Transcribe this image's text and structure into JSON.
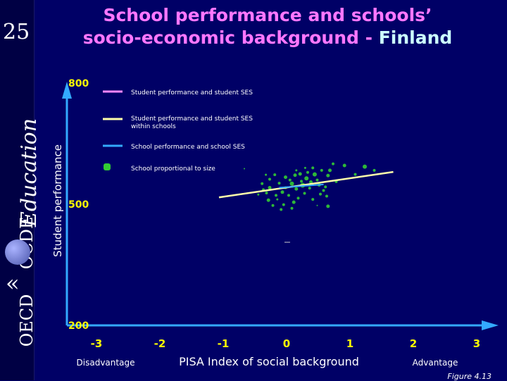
{
  "slide": {
    "number": "25",
    "title_main": "School performance and schools’ socio-economic background - ",
    "title_country": "Finland",
    "caption": "Figure 4.13"
  },
  "sidebar": {
    "logo_education": "Education",
    "logo_ocde": "OCDE",
    "logo_oecd": "OECD"
  },
  "colors": {
    "background": "#000066",
    "title": "#ff77ff",
    "title_highlight": "#ccffff",
    "axis": "#33aaff",
    "tick_labels": "#ffff00",
    "schools": "#33cc33",
    "student_line": "#ff88ff",
    "within_line": "#ffffaa",
    "school_line": "#33aaff"
  },
  "chart_data": {
    "type": "scatter",
    "xlabel": "PISA Index of social background",
    "ylabel": "Student performance",
    "xlim": [
      -3,
      3
    ],
    "ylim": [
      200,
      800
    ],
    "x_ticks": [
      "-3",
      "-2",
      "-1",
      "0",
      "1",
      "2",
      "3"
    ],
    "y_ticks": [
      "800",
      "500",
      "200"
    ],
    "x_annotations": {
      "left": "Disadvantage",
      "right": "Advantage"
    },
    "legend": [
      {
        "label": "Student performance and student SES",
        "kind": "line",
        "color": "#ff88ff"
      },
      {
        "label": "Student performance and student SES within schools",
        "kind": "line",
        "color": "#ffffaa"
      },
      {
        "label": "School performance and school SES",
        "kind": "line",
        "color": "#33aaff"
      },
      {
        "label": "School proportional to size",
        "kind": "marker",
        "color": "#33cc33"
      }
    ],
    "lines": [
      {
        "series": "Student performance and student SES within schools",
        "x": [
          -1.1,
          1.65
        ],
        "y": [
          517,
          580
        ]
      },
      {
        "series": "School performance and school SES",
        "x": [
          -0.15,
          0.55
        ],
        "y": [
          541,
          549
        ]
      }
    ],
    "schools": [
      {
        "x": 0.22,
        "y": 547,
        "r": 3.5
      },
      {
        "x": 0.05,
        "y": 551,
        "r": 3.0
      },
      {
        "x": 0.12,
        "y": 538,
        "r": 2.5
      },
      {
        "x": 0.28,
        "y": 564,
        "r": 3.0
      },
      {
        "x": 0.35,
        "y": 555,
        "r": 2.5
      },
      {
        "x": 0.18,
        "y": 575,
        "r": 2.5
      },
      {
        "x": 0.41,
        "y": 574,
        "r": 3.0
      },
      {
        "x": 0.3,
        "y": 579,
        "r": 2.0
      },
      {
        "x": 0.1,
        "y": 572,
        "r": 2.5
      },
      {
        "x": 0.45,
        "y": 560,
        "r": 2.0
      },
      {
        "x": 0.52,
        "y": 584,
        "r": 2.0
      },
      {
        "x": 0.62,
        "y": 571,
        "r": 2.5
      },
      {
        "x": 0.65,
        "y": 584,
        "r": 2.5
      },
      {
        "x": 0.88,
        "y": 596,
        "r": 2.5
      },
      {
        "x": 1.2,
        "y": 593,
        "r": 3.0
      },
      {
        "x": 1.05,
        "y": 574,
        "r": 2.0
      },
      {
        "x": 1.35,
        "y": 584,
        "r": 2.0
      },
      {
        "x": 0.75,
        "y": 556,
        "r": 2.0
      },
      {
        "x": 0.58,
        "y": 543,
        "r": 2.0
      },
      {
        "x": -0.05,
        "y": 567,
        "r": 2.5
      },
      {
        "x": -0.15,
        "y": 552,
        "r": 2.0
      },
      {
        "x": -0.22,
        "y": 573,
        "r": 2.0
      },
      {
        "x": -0.3,
        "y": 541,
        "r": 2.5
      },
      {
        "x": -0.35,
        "y": 528,
        "r": 2.0
      },
      {
        "x": -0.2,
        "y": 522,
        "r": 2.0
      },
      {
        "x": -0.1,
        "y": 530,
        "r": 2.5
      },
      {
        "x": 0.0,
        "y": 522,
        "r": 2.0
      },
      {
        "x": 0.15,
        "y": 515,
        "r": 2.0
      },
      {
        "x": 0.08,
        "y": 505,
        "r": 2.5
      },
      {
        "x": -0.08,
        "y": 499,
        "r": 2.0
      },
      {
        "x": 0.38,
        "y": 512,
        "r": 2.0
      },
      {
        "x": 0.5,
        "y": 525,
        "r": 2.0
      },
      {
        "x": 0.62,
        "y": 495,
        "r": 2.5
      },
      {
        "x": 0.6,
        "y": 520,
        "r": 2.0
      },
      {
        "x": -0.32,
        "y": 510,
        "r": 2.5
      },
      {
        "x": -0.25,
        "y": 497,
        "r": 2.0
      },
      {
        "x": -0.12,
        "y": 487,
        "r": 2.0
      },
      {
        "x": 0.05,
        "y": 490,
        "r": 2.0
      },
      {
        "x": -0.05,
        "y": 541,
        "r": 2.0
      },
      {
        "x": 0.25,
        "y": 527,
        "r": 2.0
      },
      {
        "x": 0.33,
        "y": 540,
        "r": 2.0
      },
      {
        "x": -0.4,
        "y": 536,
        "r": 2.0
      },
      {
        "x": -0.42,
        "y": 551,
        "r": 2.0
      },
      {
        "x": 0.02,
        "y": 560,
        "r": 2.0
      },
      {
        "x": 0.2,
        "y": 557,
        "r": 2.0
      },
      {
        "x": 0.48,
        "y": 548,
        "r": 2.5
      },
      {
        "x": -0.3,
        "y": 562,
        "r": 2.0
      },
      {
        "x": 0.7,
        "y": 600,
        "r": 2.0
      },
      {
        "x": 0.38,
        "y": 590,
        "r": 2.0
      },
      {
        "x": -0.48,
        "y": 524,
        "r": 1.5
      },
      {
        "x": -0.36,
        "y": 573,
        "r": 1.5
      },
      {
        "x": 0.26,
        "y": 590,
        "r": 1.5
      },
      {
        "x": -0.7,
        "y": 588,
        "r": 1.0
      },
      {
        "x": 0.45,
        "y": 497,
        "r": 1.0
      },
      {
        "x": 0.55,
        "y": 534,
        "r": 2.0
      },
      {
        "x": -0.18,
        "y": 512,
        "r": 1.5
      },
      {
        "x": 0.12,
        "y": 584,
        "r": 1.5
      }
    ],
    "grid": false,
    "legend_position": "top-left"
  }
}
